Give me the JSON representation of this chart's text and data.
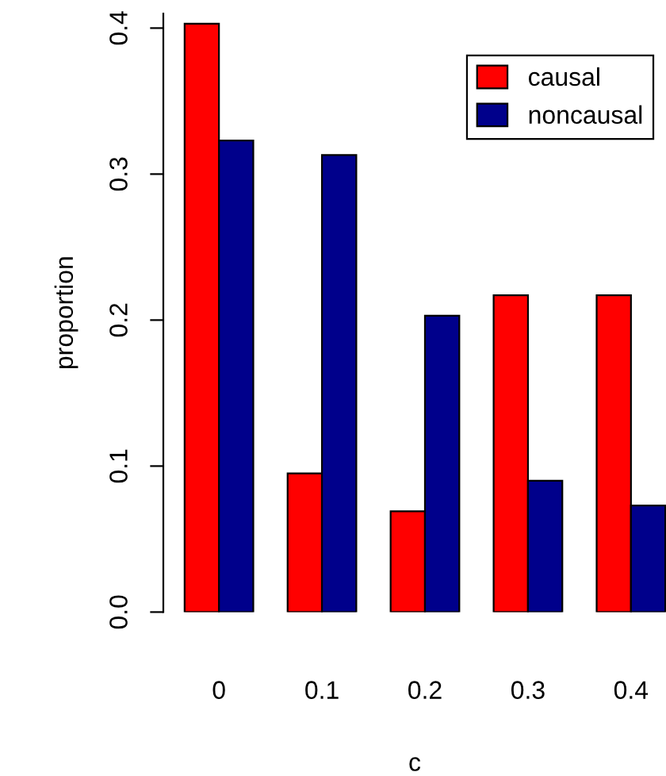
{
  "chart_data": {
    "type": "bar",
    "xlabel": "c",
    "ylabel": "proportion",
    "categories": [
      "0",
      "0.1",
      "0.2",
      "0.3",
      "0.4"
    ],
    "series": [
      {
        "name": "causal",
        "color": "#ff0000",
        "values": [
          0.403,
          0.095,
          0.069,
          0.217,
          0.217
        ]
      },
      {
        "name": "noncausal",
        "color": "#00008b",
        "values": [
          0.323,
          0.313,
          0.203,
          0.09,
          0.073
        ]
      }
    ],
    "ylim": [
      0,
      0.41
    ],
    "yticks": [
      {
        "value": 0,
        "label": "0.0"
      },
      0.1,
      0.2,
      0.3,
      0.4
    ],
    "legend": "top right",
    "grid": false
  }
}
